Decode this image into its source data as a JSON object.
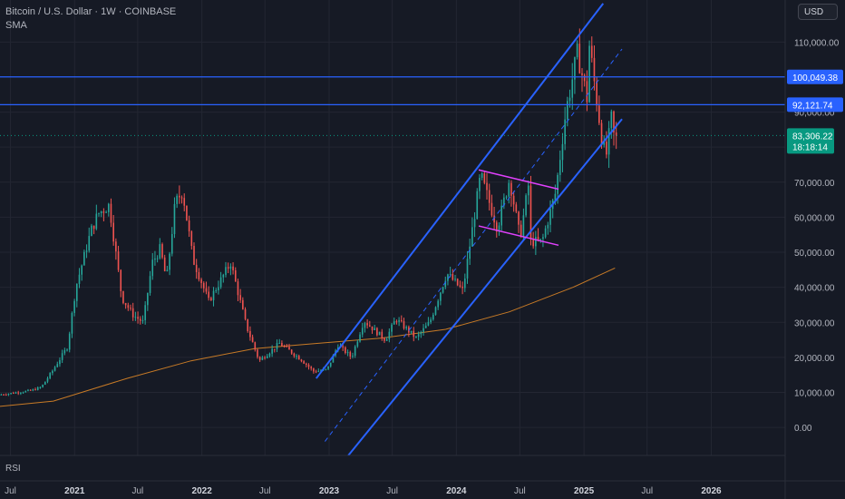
{
  "header": {
    "symbol_line": "Bitcoin / U.S. Dollar · 1W · COINBASE",
    "indicator": "SMA"
  },
  "currency_button": "USD",
  "rsi_label": "RSI",
  "colors": {
    "background": "#161a25",
    "grid": "#232632",
    "up": "#26a69a",
    "down": "#ef5350",
    "sma": "#c77a26",
    "channel": "#2962ff",
    "flag": "#e040fb",
    "hline": "#2962ff",
    "price_tag": "#089981"
  },
  "chart_data": {
    "type": "candlestick",
    "title": "Bitcoin / U.S. Dollar · 1W · COINBASE",
    "y_axis": {
      "ticks": [
        0,
        10000,
        20000,
        30000,
        40000,
        50000,
        60000,
        70000,
        80000,
        90000,
        100000,
        110000
      ],
      "tick_labels": [
        "0.00",
        "10,000.00",
        "20,000.00",
        "30,000.00",
        "40,000.00",
        "50,000.00",
        "60,000.00",
        "70,000.00",
        "80,000.00",
        "90,000.00",
        "100,000.00",
        "110,000.00"
      ],
      "range": [
        -8000,
        122000
      ]
    },
    "x_axis": {
      "range": [
        "2020-06-01",
        "2026-08-01"
      ],
      "ticks": [
        {
          "date": "2020-07-01",
          "label": "Jul"
        },
        {
          "date": "2021-01-01",
          "label": "2021"
        },
        {
          "date": "2021-07-01",
          "label": "Jul"
        },
        {
          "date": "2022-01-01",
          "label": "2022"
        },
        {
          "date": "2022-07-01",
          "label": "Jul"
        },
        {
          "date": "2023-01-01",
          "label": "2023"
        },
        {
          "date": "2023-07-01",
          "label": "Jul"
        },
        {
          "date": "2024-01-01",
          "label": "2024"
        },
        {
          "date": "2024-07-01",
          "label": "Jul"
        },
        {
          "date": "2025-01-01",
          "label": "2025"
        },
        {
          "date": "2025-07-01",
          "label": "Jul"
        },
        {
          "date": "2026-01-01",
          "label": "2026"
        }
      ]
    },
    "price_path": [
      [
        "2020-06-01",
        9300
      ],
      [
        "2020-09-01",
        10500
      ],
      [
        "2020-10-01",
        11500
      ],
      [
        "2020-11-01",
        16000
      ],
      [
        "2020-12-15",
        23000
      ],
      [
        "2021-01-08",
        40000
      ],
      [
        "2021-02-20",
        56000
      ],
      [
        "2021-03-13",
        61000
      ],
      [
        "2021-04-14",
        63500
      ],
      [
        "2021-05-20",
        37000
      ],
      [
        "2021-06-22",
        32000
      ],
      [
        "2021-07-20",
        30000
      ],
      [
        "2021-08-15",
        47000
      ],
      [
        "2021-09-07",
        51000
      ],
      [
        "2021-09-25",
        42000
      ],
      [
        "2021-10-20",
        64000
      ],
      [
        "2021-11-10",
        67500
      ],
      [
        "2021-12-10",
        48000
      ],
      [
        "2022-01-24",
        36000
      ],
      [
        "2022-03-28",
        47000
      ],
      [
        "2022-05-12",
        29000
      ],
      [
        "2022-06-18",
        19000
      ],
      [
        "2022-08-15",
        24000
      ],
      [
        "2022-10-15",
        19500
      ],
      [
        "2022-11-21",
        16000
      ],
      [
        "2022-12-30",
        16500
      ],
      [
        "2023-01-30",
        23500
      ],
      [
        "2023-03-10",
        20000
      ],
      [
        "2023-04-14",
        30500
      ],
      [
        "2023-06-15",
        25000
      ],
      [
        "2023-07-15",
        31000
      ],
      [
        "2023-09-11",
        25500
      ],
      [
        "2023-10-20",
        30000
      ],
      [
        "2023-12-08",
        44000
      ],
      [
        "2024-01-23",
        39000
      ],
      [
        "2024-03-14",
        72000
      ],
      [
        "2024-05-01",
        57000
      ],
      [
        "2024-06-05",
        71000
      ],
      [
        "2024-07-05",
        54000
      ],
      [
        "2024-07-29",
        69000
      ],
      [
        "2024-08-05",
        53000
      ],
      [
        "2024-09-06",
        53000
      ],
      [
        "2024-10-15",
        67000
      ],
      [
        "2024-11-13",
        90000
      ],
      [
        "2024-12-17",
        107000
      ],
      [
        "2025-01-13",
        94000
      ],
      [
        "2025-01-20",
        109000
      ],
      [
        "2025-02-28",
        80000
      ],
      [
        "2025-03-10",
        78000
      ],
      [
        "2025-03-24",
        88000
      ],
      [
        "2025-03-31",
        83306
      ]
    ],
    "sma": [
      [
        "2020-06-01",
        6000
      ],
      [
        "2020-11-01",
        7500
      ],
      [
        "2021-06-01",
        14000
      ],
      [
        "2021-12-01",
        19000
      ],
      [
        "2022-06-01",
        22500
      ],
      [
        "2022-12-01",
        24000
      ],
      [
        "2023-06-01",
        25500
      ],
      [
        "2023-12-01",
        28000
      ],
      [
        "2024-06-01",
        33000
      ],
      [
        "2024-12-01",
        40000
      ],
      [
        "2025-03-31",
        45500
      ]
    ],
    "channel": {
      "upper": [
        [
          "2022-11-25",
          14000
        ],
        [
          "2025-02-25",
          121000
        ]
      ],
      "middle": [
        [
          "2022-12-20",
          -4000
        ],
        [
          "2025-04-20",
          108000
        ]
      ],
      "lower": [
        [
          "2023-02-25",
          -8000
        ],
        [
          "2025-04-20",
          88000
        ]
      ]
    },
    "flag": {
      "upper": [
        [
          "2024-03-05",
          73500
        ],
        [
          "2024-10-20",
          68000
        ]
      ],
      "lower": [
        [
          "2024-03-05",
          57500
        ],
        [
          "2024-10-20",
          52000
        ]
      ]
    },
    "horizontal_levels": [
      100049.38,
      92121.74
    ],
    "price_labels": [
      {
        "value": 100049.38,
        "text": "100,049.38"
      },
      {
        "value": 92121.74,
        "text": "92,121.74"
      }
    ],
    "current_price": {
      "value": 83306.22,
      "text": "83,306.22",
      "countdown": "18:18:14"
    }
  }
}
